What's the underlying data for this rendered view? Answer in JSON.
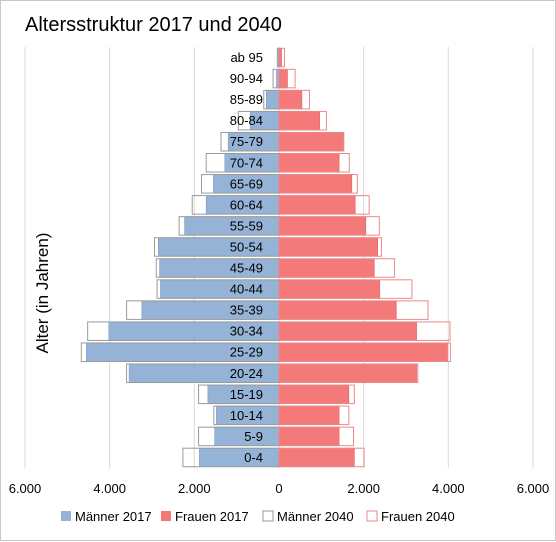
{
  "chart_data": {
    "type": "bar",
    "orientation": "horizontal-population-pyramid",
    "title": "Altersstruktur 2017 und 2040",
    "ylabel": "Alter (in Jahren)",
    "xlabel": "",
    "xlim": [
      -6000,
      6000
    ],
    "x_ticks": [
      -6000,
      -4000,
      -2000,
      0,
      2000,
      4000,
      6000
    ],
    "x_tick_labels": [
      "6.000",
      "4.000",
      "2.000",
      "0",
      "2.000",
      "4.000",
      "6.000"
    ],
    "grid": true,
    "legend_position": "bottom",
    "categories": [
      "ab 95",
      "90-94",
      "85-89",
      "80-84",
      "75-79",
      "70-74",
      "65-69",
      "60-64",
      "55-59",
      "50-54",
      "45-49",
      "40-44",
      "35-39",
      "30-34",
      "25-29",
      "20-24",
      "15-19",
      "10-14",
      "5-9",
      "0-4"
    ],
    "series": [
      {
        "name": "Männer 2017",
        "side": "left",
        "style": "filled",
        "color": "#95b3d7",
        "values": [
          20,
          60,
          300,
          680,
          1200,
          1280,
          1550,
          1720,
          2230,
          2850,
          2820,
          2800,
          3240,
          4020,
          4550,
          3540,
          1680,
          1480,
          1520,
          1880
        ]
      },
      {
        "name": "Frauen 2017",
        "side": "right",
        "style": "filled",
        "color": "#f47a7a",
        "values": [
          60,
          200,
          540,
          960,
          1530,
          1420,
          1720,
          1800,
          2050,
          2330,
          2250,
          2380,
          2770,
          3250,
          3980,
          3250,
          1650,
          1420,
          1420,
          1780
        ]
      },
      {
        "name": "Männer 2040",
        "side": "left",
        "style": "outline",
        "color": "#95b3d7",
        "values": [
          40,
          140,
          360,
          960,
          1370,
          1720,
          1830,
          2050,
          2360,
          2940,
          2900,
          2880,
          3600,
          4520,
          4670,
          3600,
          1900,
          1540,
          1900,
          2270
        ]
      },
      {
        "name": "Frauen 2040",
        "side": "right",
        "style": "outline",
        "color": "#f47a7a",
        "values": [
          130,
          380,
          720,
          1120,
          1530,
          1660,
          1850,
          2130,
          2370,
          2420,
          2730,
          3140,
          3520,
          4040,
          4050,
          3280,
          1780,
          1650,
          1760,
          2010
        ]
      }
    ]
  }
}
